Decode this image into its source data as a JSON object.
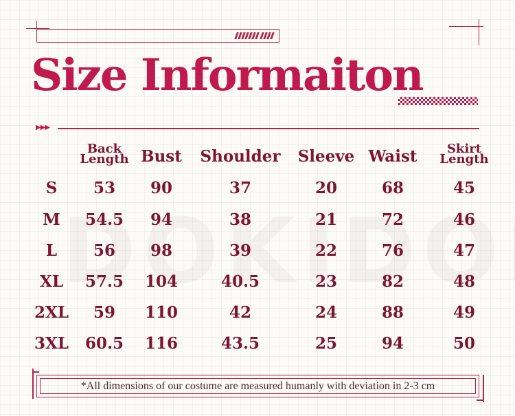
{
  "title": "Size Informaiton",
  "watermark": "DOKIDOKI",
  "headers": [
    {
      "line1": "Back",
      "line2": "Length"
    },
    {
      "line1": "Bust",
      "line2": ""
    },
    {
      "line1": "Shoulder",
      "line2": ""
    },
    {
      "line1": "Sleeve",
      "line2": ""
    },
    {
      "line1": "Waist",
      "line2": ""
    },
    {
      "line1": "Skirt",
      "line2": "Length"
    }
  ],
  "rows": [
    {
      "size": "S",
      "values": [
        "53",
        "90",
        "37",
        "20",
        "68",
        "45"
      ]
    },
    {
      "size": "M",
      "values": [
        "54.5",
        "94",
        "38",
        "21",
        "72",
        "46"
      ]
    },
    {
      "size": "L",
      "values": [
        "56",
        "98",
        "39",
        "22",
        "76",
        "47"
      ]
    },
    {
      "size": "XL",
      "values": [
        "57.5",
        "104",
        "40.5",
        "23",
        "82",
        "48"
      ]
    },
    {
      "size": "2XL",
      "values": [
        "59",
        "110",
        "42",
        "24",
        "88",
        "49"
      ]
    },
    {
      "size": "3XL",
      "values": [
        "60.5",
        "116",
        "43.5",
        "25",
        "94",
        "50"
      ]
    }
  ],
  "note": "*All dimensions of our costume are measured humanly with deviation in 2-3 cm",
  "colors": {
    "accent": "#c01a4d",
    "text": "#7a1630"
  }
}
